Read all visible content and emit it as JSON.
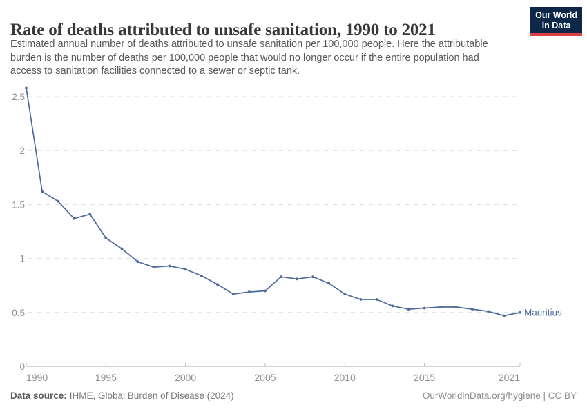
{
  "header": {
    "title": "Rate of deaths attributed to unsafe sanitation, 1990 to 2021",
    "subtitle_lines": [
      "Estimated annual number of deaths attributed to unsafe sanitation per 100,000 people. Here the attributable",
      "burden is the number of deaths per 100,000 people that would no longer occur if the entire population had",
      "access to sanitation facilities connected to a sewer or septic tank."
    ],
    "logo": {
      "line1": "Our World",
      "line2": "in Data"
    }
  },
  "chart_data": {
    "type": "line",
    "title": "Rate of deaths attributed to unsafe sanitation, 1990 to 2021",
    "x": [
      1990,
      1991,
      1992,
      1993,
      1994,
      1995,
      1996,
      1997,
      1998,
      1999,
      2000,
      2001,
      2002,
      2003,
      2004,
      2005,
      2006,
      2007,
      2008,
      2009,
      2010,
      2011,
      2012,
      2013,
      2014,
      2015,
      2016,
      2017,
      2018,
      2019,
      2020,
      2021
    ],
    "series": [
      {
        "name": "Mauritius",
        "color": "#4c6a9c",
        "values": [
          2.58,
          1.62,
          1.53,
          1.37,
          1.41,
          1.19,
          1.09,
          0.97,
          0.92,
          0.93,
          0.9,
          0.84,
          0.76,
          0.67,
          0.69,
          0.7,
          0.83,
          0.81,
          0.83,
          0.77,
          0.67,
          0.62,
          0.62,
          0.56,
          0.53,
          0.54,
          0.55,
          0.55,
          0.53,
          0.51,
          0.47,
          0.5
        ]
      }
    ],
    "xlabel": "",
    "ylabel": "",
    "xlim": [
      1990,
      2021
    ],
    "ylim": [
      0,
      2.6
    ],
    "x_tick_values": [
      1990,
      1995,
      2000,
      2005,
      2010,
      2015,
      2021
    ],
    "x_tick_labels": [
      "1990",
      "1995",
      "2000",
      "2005",
      "2010",
      "2015",
      "2021"
    ],
    "y_tick_values": [
      0,
      0.5,
      1,
      1.5,
      2,
      2.5
    ],
    "y_tick_labels": [
      "0",
      "0.5",
      "1",
      "1.5",
      "2",
      "2.5"
    ],
    "grid": "horizontal dashed",
    "legend_position": "end-of-line"
  },
  "footer": {
    "source_label": "Data source:",
    "source_value": "IHME, Global Burden of Disease (2024)",
    "attribution": "OurWorldinData.org/hygiene | CC BY"
  },
  "colors": {
    "line": "#4c6a9c",
    "series_label": "#4c6a9c",
    "grid": "#dcdcdc",
    "axis": "#a3a3a3",
    "tick": "#bbbbbb",
    "tick_label": "#8f8f8f",
    "logo_bg": "#0c2747",
    "logo_accent": "#dc3d43"
  }
}
